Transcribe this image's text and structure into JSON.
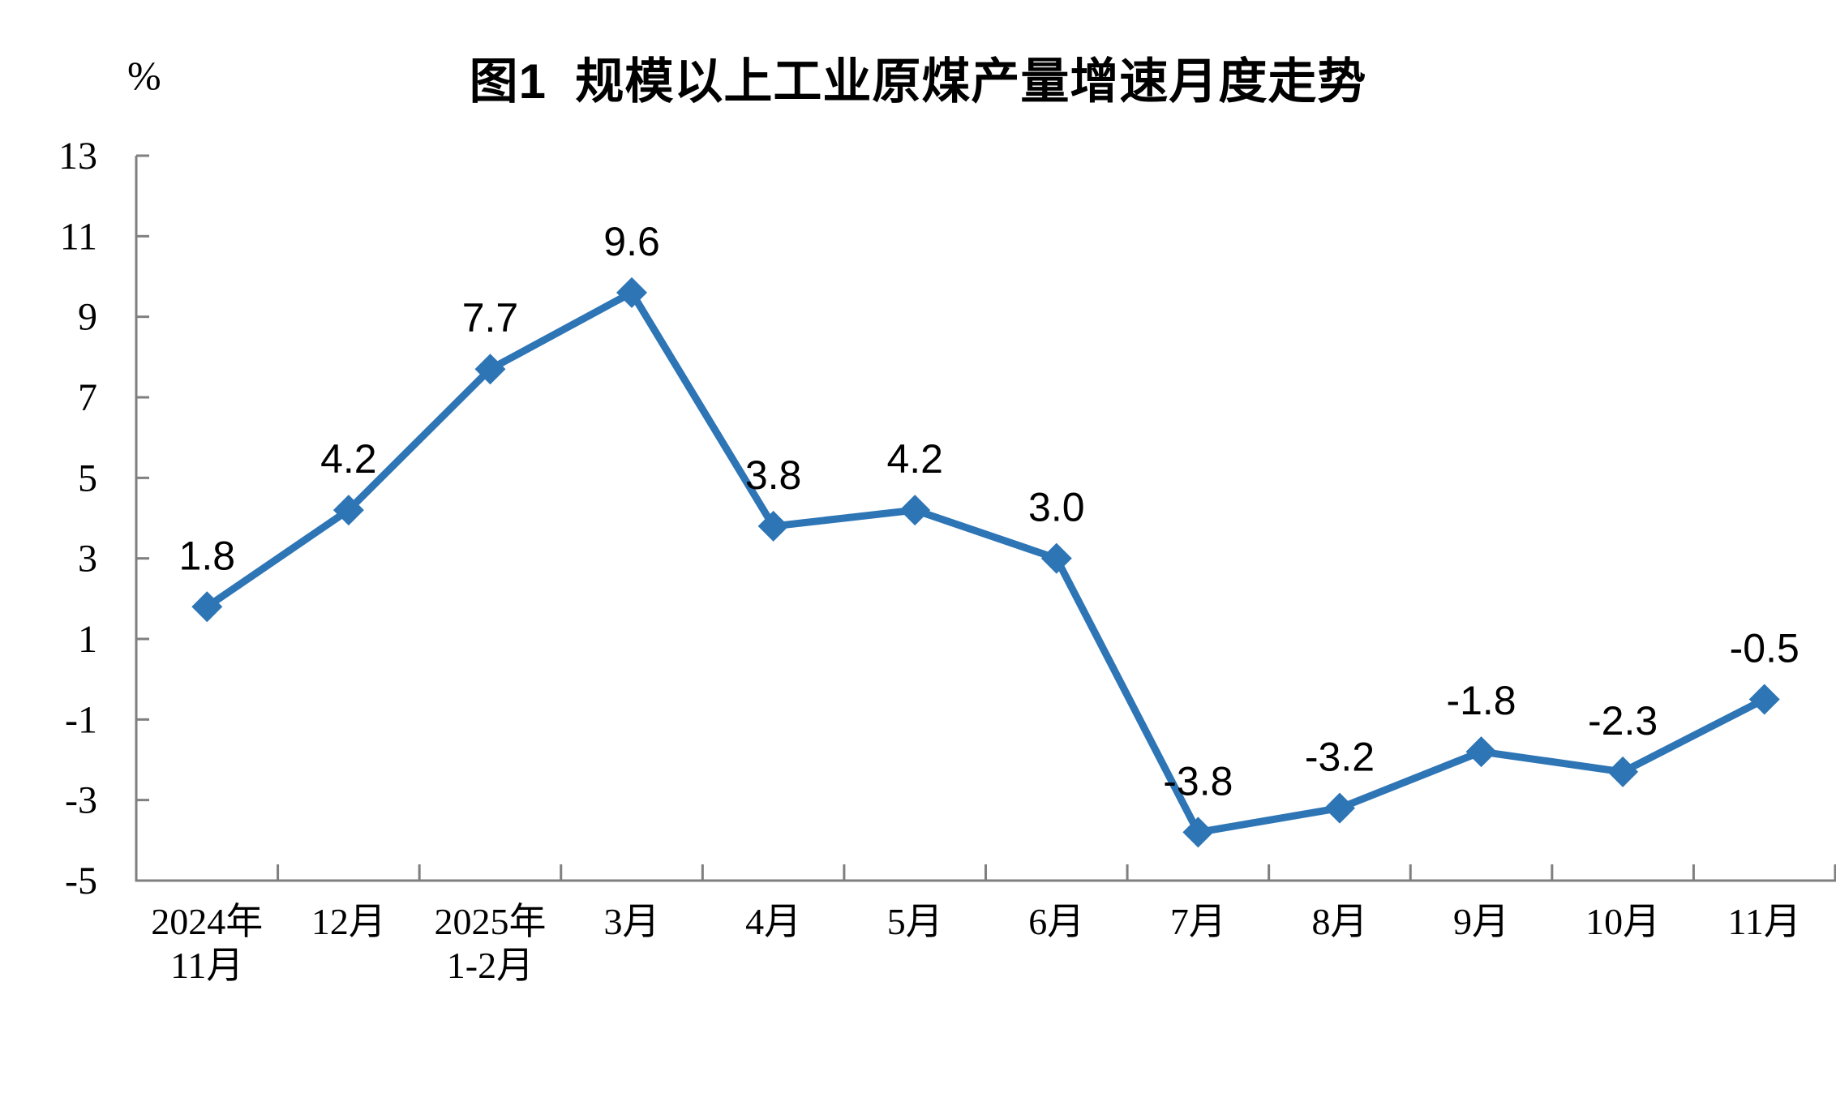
{
  "page": {
    "background": "#FFFFFF"
  },
  "chart_data": {
    "type": "line",
    "title": "图1  规模以上工业原煤产量增速月度走势",
    "unit_label": "%",
    "categories": [
      "2024年\n11月",
      "12月",
      "2025年\n1-2月",
      "3月",
      "4月",
      "5月",
      "6月",
      "7月",
      "8月",
      "9月",
      "10月",
      "11月"
    ],
    "values": [
      1.8,
      4.2,
      7.7,
      9.6,
      3.8,
      4.2,
      3.0,
      -3.8,
      -3.2,
      -1.8,
      -2.3,
      -0.5
    ],
    "data_labels": [
      "1.8",
      "4.2",
      "7.7",
      "9.6",
      "3.8",
      "4.2",
      "3.0",
      "-3.8",
      "-3.2",
      "-1.8",
      "-2.3",
      "-0.5"
    ],
    "ylim": [
      -5,
      13
    ],
    "yticks": [
      13,
      11,
      9,
      7,
      5,
      3,
      1,
      -1,
      -3,
      -5
    ],
    "grid": "off",
    "legend": "none",
    "marker": "diamond",
    "line_color": "#2E75B6",
    "marker_color": "#2E75B6",
    "axis_color": "#7F7F7F",
    "text_color": "#000000"
  }
}
